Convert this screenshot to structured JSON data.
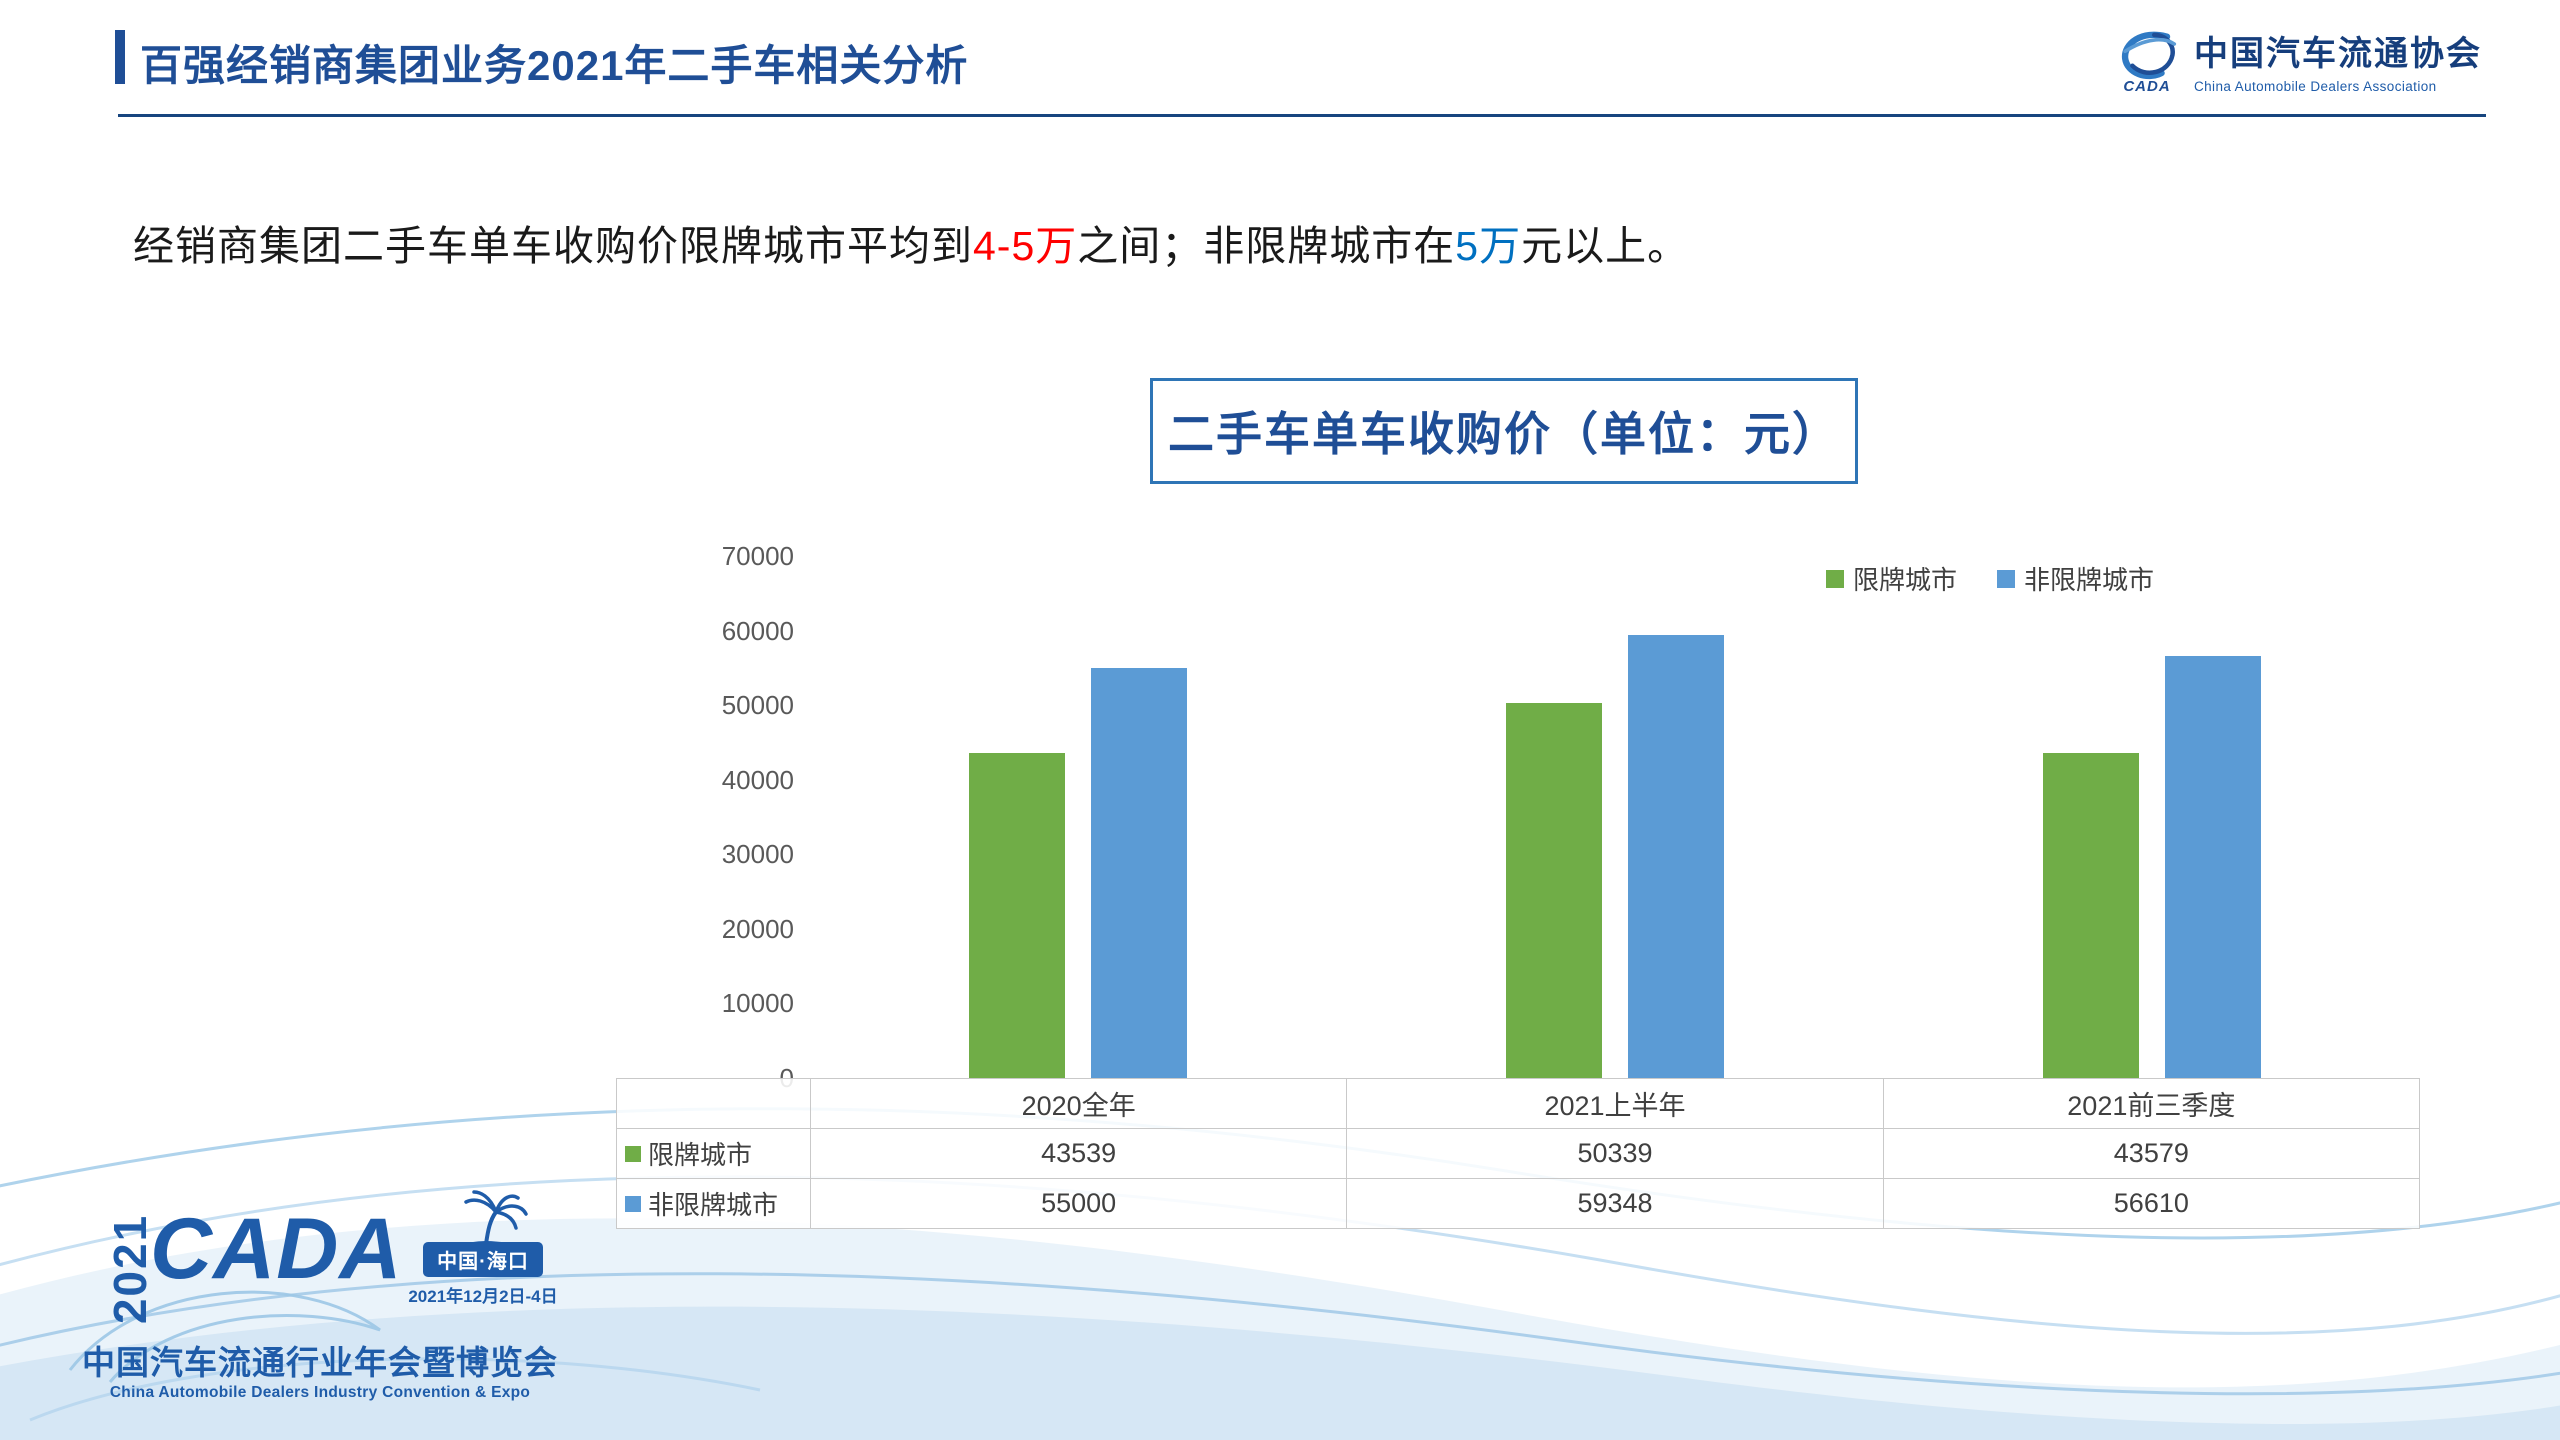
{
  "header": {
    "title": "百强经销商集团业务2021年二手车相关分析",
    "logo": {
      "mark": "CADA",
      "org_cn": "中国汽车流通协会",
      "org_en": "China Automobile Dealers Association"
    }
  },
  "intro": {
    "part1": "经销商集团二手车单车收购价限牌城市平均到",
    "highlight_red": "4-5万",
    "part2": "之间；非限牌城市在",
    "highlight_blue": "5万",
    "part3": "元以上。"
  },
  "chart_data": {
    "type": "bar",
    "title": "二手车单车收购价（单位：元）",
    "categories": [
      "2020全年",
      "2021上半年",
      "2021前三季度"
    ],
    "series": [
      {
        "name": "限牌城市",
        "color": "#70AD47",
        "values": [
          43539,
          50339,
          43579
        ]
      },
      {
        "name": "非限牌城市",
        "color": "#5B9BD5",
        "values": [
          55000,
          59348,
          56610
        ]
      }
    ],
    "ylim": [
      0,
      70000
    ],
    "ytick_step": 10000,
    "legend_position": "top-right",
    "grid": false,
    "data_table_shown": true
  },
  "footer_logo": {
    "year": "2021",
    "brand": "CADA",
    "location": "中国·海口",
    "date": "2021年12月2日-4日",
    "event_cn": "中国汽车流通行业年会暨博览会",
    "event_en": "China Automobile Dealers Industry Convention & Expo"
  },
  "colors": {
    "accent_blue": "#1F4E96",
    "highlight_red": "#FF0000",
    "highlight_blue": "#0070C0",
    "series_green": "#70AD47",
    "series_blue": "#5B9BD5"
  }
}
